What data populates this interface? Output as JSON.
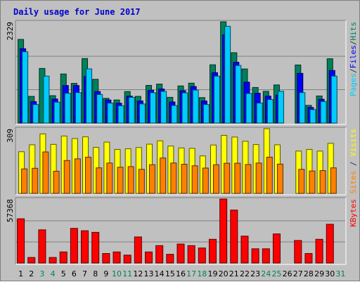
{
  "chart_data": {
    "type": "bar",
    "title": "Daily usage for June 2017",
    "categories": [
      "1",
      "2",
      "3",
      "4",
      "5",
      "6",
      "7",
      "8",
      "9",
      "10",
      "11",
      "12",
      "13",
      "14",
      "15",
      "16",
      "17",
      "18",
      "19",
      "20",
      "21",
      "22",
      "23",
      "24",
      "25",
      "26",
      "27",
      "28",
      "29",
      "30",
      "31"
    ],
    "weekend_days": [
      "3",
      "4",
      "10",
      "11",
      "17",
      "18",
      "24",
      "25",
      "31"
    ],
    "panels": [
      {
        "id": "hits-files-pages",
        "ymax": 2329,
        "ymax_label": "2329",
        "ylabel_parts": [
          {
            "text": "Pages",
            "color": "#00ccff"
          },
          {
            "text": "/",
            "color": "#333333"
          },
          {
            "text": "Files",
            "color": "#0000ff"
          },
          {
            "text": "/",
            "color": "#333333"
          },
          {
            "text": "Hits",
            "color": "#00805c"
          }
        ],
        "gridlines": [
          0.33,
          0.66
        ],
        "series": [
          {
            "name": "Hits",
            "color": "#00805c",
            "values": [
              1924,
              614,
              1256,
              630,
              1129,
              913,
              1484,
              1006,
              569,
              531,
              725,
              614,
              866,
              897,
              592,
              854,
              918,
              586,
              1340,
              2329,
              1618,
              1244,
              818,
              730,
              877,
              null,
              1336,
              407,
              623,
              1480,
              null
            ]
          },
          {
            "name": "Files",
            "color": "#0000ff",
            "values": [
              1710,
              494,
              null,
              553,
              863,
              863,
              1070,
              724,
              531,
              457,
              619,
              508,
              754,
              784,
              486,
              745,
              840,
              508,
              1159,
              2032,
              1398,
              940,
              687,
              620,
              643,
              null,
              1143,
              359,
              547,
              1209,
              null
            ]
          },
          {
            "name": "Pages",
            "color": "#00ccff",
            "values": [
              1640,
              426,
              1080,
              481,
              685,
              702,
              1246,
              656,
              458,
              398,
              592,
              440,
              697,
              729,
              405,
              695,
              760,
              426,
              1080,
              2226,
              1324,
              680,
              460,
              541,
              732,
              null,
              701,
              310,
              496,
              1080,
              null
            ]
          }
        ]
      },
      {
        "id": "visits-sites",
        "ymax": 309,
        "ymax_label": "309",
        "ylabel_parts": [
          {
            "text": "Sites",
            "color": "#ff8000"
          },
          {
            "text": " / ",
            "color": "#333333"
          },
          {
            "text": "Visits",
            "color": "#ffff00"
          }
        ],
        "gridlines": [],
        "series": [
          {
            "name": "Visits",
            "color": "#ffff00",
            "values": [
              199,
              232,
              284,
              234,
              274,
              262,
              270,
              220,
              245,
              210,
              213,
              219,
              235,
              251,
              226,
              217,
              215,
              179,
              231,
              277,
              269,
              249,
              233,
              309,
              232,
              null,
              202,
              210,
              202,
              239,
              null
            ]
          },
          {
            "name": "Sites",
            "color": "#ff8000",
            "values": [
              117,
              120,
              198,
              106,
              157,
              165,
              173,
              122,
              145,
              125,
              128,
              115,
              137,
              169,
              145,
              139,
              132,
              121,
              137,
              144,
              144,
              138,
              145,
              173,
              140,
              null,
              115,
              107,
              109,
              122,
              null
            ]
          }
        ]
      },
      {
        "id": "kbytes",
        "ymax": 57368,
        "ymax_label": "57368",
        "ylabel_parts": [
          {
            "text": "KBytes",
            "color": "#ff0000"
          }
        ],
        "gridlines": [
          0.33,
          0.66
        ],
        "series": [
          {
            "name": "KBytes",
            "color": "#ff0000",
            "values": [
              39658,
              4960,
              29756,
              4960,
              9920,
              31045,
              28919,
              27502,
              8503,
              9920,
              7086,
              23385,
              9920,
              15589,
              7794,
              17006,
              15589,
              13464,
              21256,
              57368,
              47448,
              24093,
              12755,
              12755,
              26073,
              null,
              20194,
              8503,
              21256,
              34723,
              null
            ]
          }
        ]
      }
    ]
  }
}
